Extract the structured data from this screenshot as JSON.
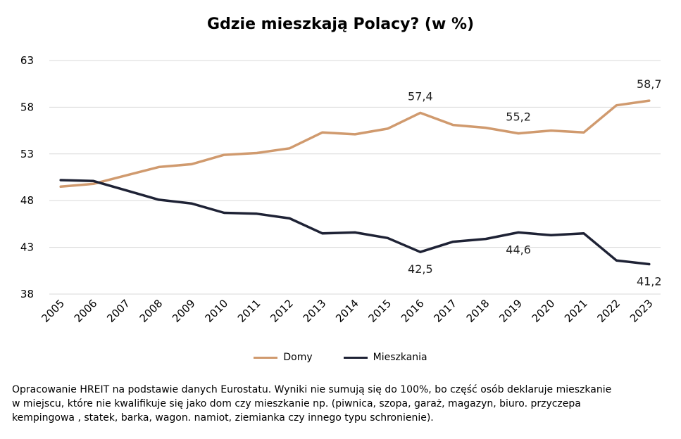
{
  "chart_data": {
    "type": "line",
    "title": "Gdzie mieszkają Polacy? (w %)",
    "x": [
      "2005",
      "2006",
      "2007",
      "2008",
      "2009",
      "2010",
      "2011",
      "2012",
      "2013",
      "2014",
      "2015",
      "2016",
      "2017",
      "2018",
      "2019",
      "2020",
      "2021",
      "2022",
      "2023"
    ],
    "ylim": [
      38,
      63
    ],
    "yticks": [
      "63",
      "58",
      "53",
      "48",
      "43",
      "38"
    ],
    "ytick_values": [
      63,
      58,
      53,
      48,
      43,
      38
    ],
    "grid": true,
    "legend_position": "bottom",
    "series": [
      {
        "name": "Domy",
        "color": "#D09A6E",
        "values": [
          49.5,
          49.8,
          50.7,
          51.6,
          51.9,
          52.9,
          53.1,
          53.6,
          55.3,
          55.1,
          55.7,
          57.4,
          56.1,
          55.8,
          55.2,
          55.5,
          55.3,
          58.2,
          58.7
        ],
        "labels": [
          {
            "index": 11,
            "text": "57,4"
          },
          {
            "index": 14,
            "text": "55,2"
          },
          {
            "index": 18,
            "text": "58,7"
          }
        ]
      },
      {
        "name": "Mieszkania",
        "color": "#1E2235",
        "values": [
          50.2,
          50.1,
          49.1,
          48.1,
          47.7,
          46.7,
          46.6,
          46.1,
          44.5,
          44.6,
          44.0,
          42.5,
          43.6,
          43.9,
          44.6,
          44.3,
          44.5,
          41.6,
          41.2
        ],
        "labels": [
          {
            "index": 11,
            "text": "42,5"
          },
          {
            "index": 14,
            "text": "44,6"
          },
          {
            "index": 18,
            "text": "41,2"
          }
        ]
      }
    ]
  },
  "footnote": {
    "line1": "Opracowanie HREIT na podstawie danych Eurostatu. Wyniki nie sumują się do 100%, bo część osób deklaruje mieszkanie",
    "line2": "w miejscu, które nie kwalifikuje się jako dom czy mieszkanie np. (piwnica, szopa, garaż, magazyn, biuro. przyczepa",
    "line3": "kempingowa , statek, barka, wagon. namiot, ziemianka czy innego typu schronienie)."
  }
}
